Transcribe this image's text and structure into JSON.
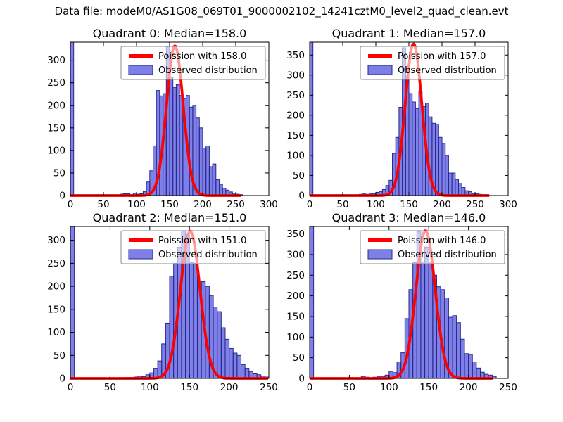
{
  "figure": {
    "title": "Data file: modeM0/AS1G08_069T01_9000002102_14241cztM0_level2_quad_clean.evt",
    "background": "#ffffff"
  },
  "colors": {
    "bar_fill": "#0000d2",
    "bar_fill_opacity": 0.5,
    "bar_edge": "#28288a",
    "curve": "#ff0000",
    "axis": "#000000",
    "legend_border": "#8a8a8a",
    "legend_bg": "#ffffff",
    "legend_bg_opacity": 0.6
  },
  "chart_data": [
    {
      "type": "bar",
      "title": "Quadrant 0: Median=158.0",
      "median": 158.0,
      "legend": {
        "position": "upper right",
        "entries": [
          "Poission with 158.0",
          "Observed distribution"
        ]
      },
      "xlim": [
        0,
        300
      ],
      "ylim": [
        0,
        340
      ],
      "xticks": [
        0,
        50,
        100,
        150,
        200,
        250,
        300
      ],
      "yticks": [
        0,
        50,
        100,
        150,
        200,
        250,
        300
      ],
      "grid": false,
      "bin_width": 5,
      "bars": [
        [
          0,
          340
        ],
        [
          75,
          3
        ],
        [
          80,
          4
        ],
        [
          85,
          4
        ],
        [
          90,
          2
        ],
        [
          95,
          5
        ],
        [
          100,
          3
        ],
        [
          105,
          4
        ],
        [
          110,
          9
        ],
        [
          115,
          30
        ],
        [
          120,
          55
        ],
        [
          125,
          110
        ],
        [
          130,
          233
        ],
        [
          135,
          221
        ],
        [
          140,
          226
        ],
        [
          145,
          330
        ],
        [
          150,
          262
        ],
        [
          155,
          240
        ],
        [
          160,
          246
        ],
        [
          165,
          222
        ],
        [
          170,
          215
        ],
        [
          175,
          222
        ],
        [
          180,
          196
        ],
        [
          185,
          200
        ],
        [
          190,
          172
        ],
        [
          195,
          150
        ],
        [
          200,
          105
        ],
        [
          205,
          110
        ],
        [
          210,
          64
        ],
        [
          215,
          70
        ],
        [
          220,
          35
        ],
        [
          225,
          25
        ],
        [
          230,
          16
        ],
        [
          235,
          12
        ],
        [
          240,
          8
        ],
        [
          245,
          5
        ],
        [
          250,
          3
        ],
        [
          255,
          2
        ]
      ],
      "overlay_line": {
        "label": "Poission with 158.0",
        "lambda": 158.0,
        "peak": 332,
        "x_end": 258
      }
    },
    {
      "type": "bar",
      "title": "Quadrant 1: Median=157.0",
      "median": 157.0,
      "legend": {
        "position": "upper right",
        "entries": [
          "Poission with 157.0",
          "Observed distribution"
        ]
      },
      "xlim": [
        0,
        300
      ],
      "ylim": [
        0,
        382
      ],
      "xticks": [
        0,
        50,
        100,
        150,
        200,
        250,
        300
      ],
      "yticks": [
        0,
        50,
        100,
        150,
        200,
        250,
        300,
        350
      ],
      "grid": false,
      "bin_width": 5,
      "bars": [
        [
          0,
          382
        ],
        [
          75,
          3
        ],
        [
          80,
          4
        ],
        [
          85,
          3
        ],
        [
          90,
          4
        ],
        [
          95,
          5
        ],
        [
          100,
          8
        ],
        [
          105,
          10
        ],
        [
          110,
          15
        ],
        [
          115,
          25
        ],
        [
          120,
          38
        ],
        [
          125,
          105
        ],
        [
          130,
          145
        ],
        [
          135,
          220
        ],
        [
          140,
          368
        ],
        [
          145,
          300
        ],
        [
          150,
          254
        ],
        [
          155,
          233
        ],
        [
          160,
          217
        ],
        [
          165,
          260
        ],
        [
          170,
          222
        ],
        [
          175,
          230
        ],
        [
          180,
          196
        ],
        [
          185,
          180
        ],
        [
          190,
          178
        ],
        [
          195,
          145
        ],
        [
          200,
          130
        ],
        [
          205,
          100
        ],
        [
          210,
          56
        ],
        [
          215,
          56
        ],
        [
          220,
          40
        ],
        [
          225,
          30
        ],
        [
          230,
          20
        ],
        [
          235,
          12
        ],
        [
          240,
          10
        ],
        [
          245,
          5
        ],
        [
          250,
          5
        ],
        [
          255,
          3
        ],
        [
          260,
          2
        ],
        [
          265,
          2
        ]
      ],
      "overlay_line": {
        "label": "Poission with 157.0",
        "lambda": 157.0,
        "peak": 378,
        "x_end": 272
      }
    },
    {
      "type": "bar",
      "title": "Quadrant 2: Median=151.0",
      "median": 151.0,
      "legend": {
        "position": "upper right",
        "entries": [
          "Poission with 151.0",
          "Observed distribution"
        ]
      },
      "xlim": [
        0,
        250
      ],
      "ylim": [
        0,
        330
      ],
      "xticks": [
        0,
        50,
        100,
        150,
        200,
        250
      ],
      "yticks": [
        0,
        50,
        100,
        150,
        200,
        250,
        300
      ],
      "grid": false,
      "bin_width": 5,
      "bars": [
        [
          0,
          330
        ],
        [
          70,
          2
        ],
        [
          75,
          2
        ],
        [
          80,
          3
        ],
        [
          85,
          5
        ],
        [
          90,
          4
        ],
        [
          95,
          8
        ],
        [
          100,
          12
        ],
        [
          105,
          22
        ],
        [
          110,
          38
        ],
        [
          115,
          75
        ],
        [
          120,
          120
        ],
        [
          125,
          222
        ],
        [
          130,
          250
        ],
        [
          135,
          285
        ],
        [
          140,
          320
        ],
        [
          145,
          315
        ],
        [
          150,
          252
        ],
        [
          155,
          250
        ],
        [
          160,
          205
        ],
        [
          165,
          210
        ],
        [
          170,
          200
        ],
        [
          175,
          180
        ],
        [
          180,
          155
        ],
        [
          185,
          145
        ],
        [
          190,
          110
        ],
        [
          195,
          85
        ],
        [
          200,
          65
        ],
        [
          205,
          55
        ],
        [
          210,
          50
        ],
        [
          215,
          30
        ],
        [
          220,
          22
        ],
        [
          225,
          15
        ],
        [
          230,
          10
        ],
        [
          235,
          8
        ],
        [
          240,
          5
        ],
        [
          245,
          3
        ]
      ],
      "overlay_line": {
        "label": "Poission with 151.0",
        "lambda": 151.0,
        "peak": 320,
        "x_end": 250
      }
    },
    {
      "type": "bar",
      "title": "Quadrant 3: Median=146.0",
      "median": 146.0,
      "legend": {
        "position": "upper right",
        "entries": [
          "Poission with 146.0",
          "Observed distribution"
        ]
      },
      "xlim": [
        0,
        250
      ],
      "ylim": [
        0,
        368
      ],
      "xticks": [
        0,
        50,
        100,
        150,
        200,
        250
      ],
      "yticks": [
        0,
        50,
        100,
        150,
        200,
        250,
        300,
        350
      ],
      "grid": false,
      "bin_width": 5,
      "bars": [
        [
          0,
          368
        ],
        [
          65,
          5
        ],
        [
          70,
          3
        ],
        [
          80,
          3
        ],
        [
          85,
          4
        ],
        [
          90,
          5
        ],
        [
          95,
          8
        ],
        [
          100,
          17
        ],
        [
          105,
          14
        ],
        [
          110,
          40
        ],
        [
          115,
          62
        ],
        [
          120,
          145
        ],
        [
          125,
          215
        ],
        [
          130,
          280
        ],
        [
          135,
          355
        ],
        [
          140,
          282
        ],
        [
          145,
          318
        ],
        [
          150,
          282
        ],
        [
          155,
          250
        ],
        [
          160,
          222
        ],
        [
          165,
          215
        ],
        [
          170,
          195
        ],
        [
          175,
          148
        ],
        [
          180,
          152
        ],
        [
          185,
          135
        ],
        [
          190,
          95
        ],
        [
          195,
          60
        ],
        [
          200,
          58
        ],
        [
          205,
          40
        ],
        [
          210,
          25
        ],
        [
          215,
          15
        ],
        [
          220,
          10
        ],
        [
          225,
          8
        ],
        [
          230,
          5
        ]
      ],
      "overlay_line": {
        "label": "Poission with 146.0",
        "lambda": 146.0,
        "peak": 358,
        "x_end": 232
      }
    }
  ]
}
